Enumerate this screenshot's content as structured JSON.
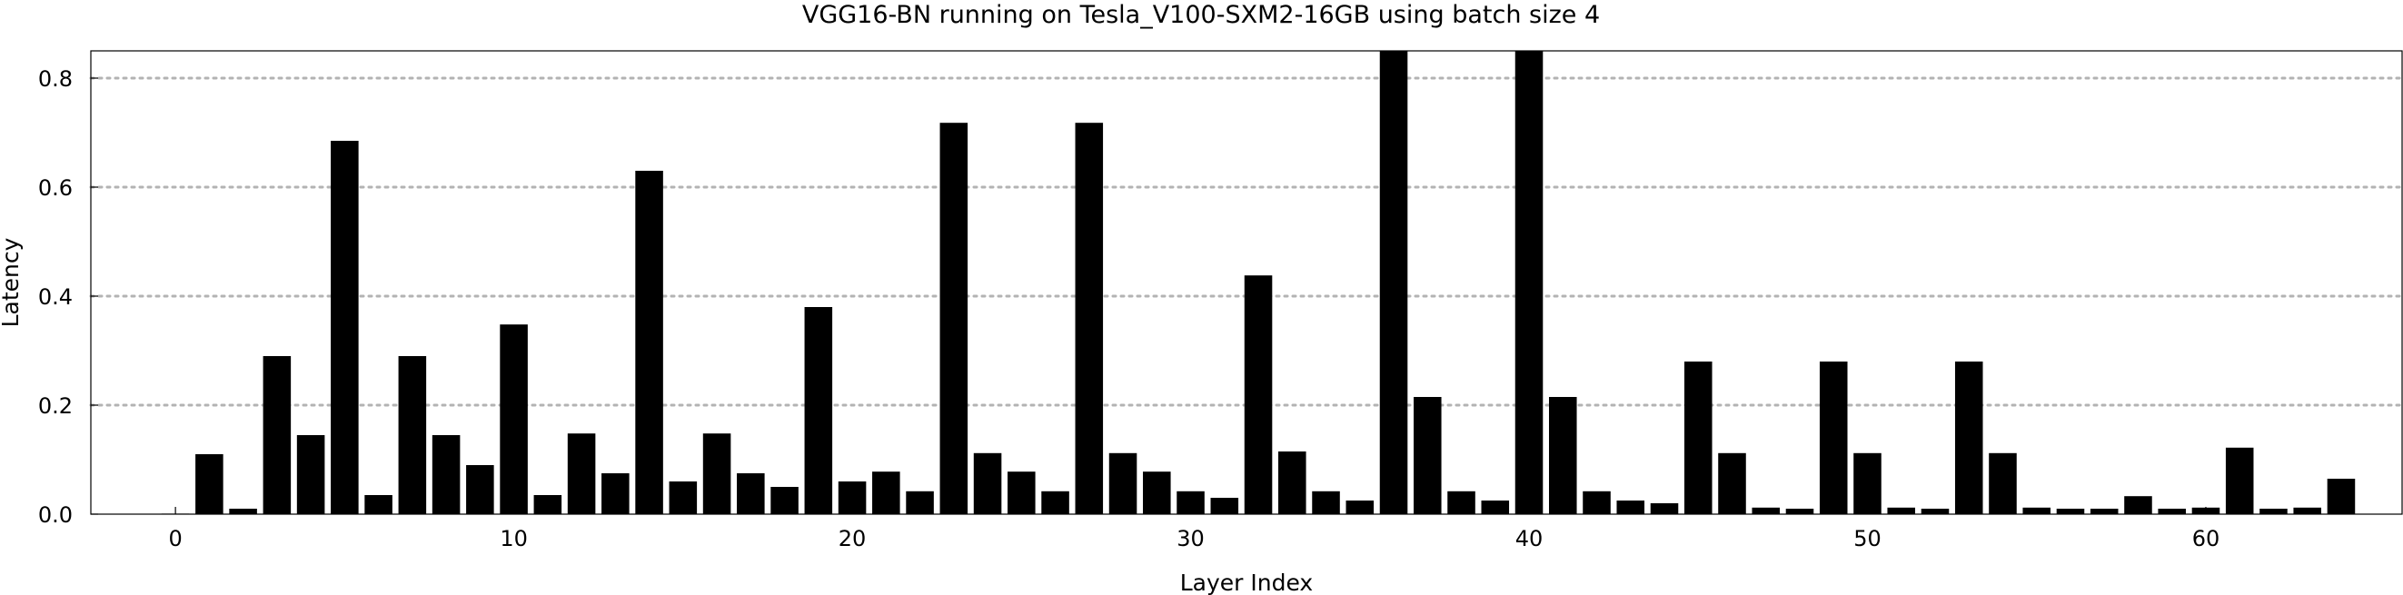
{
  "chart_data": {
    "type": "bar",
    "title": "VGG16-BN running on Tesla_V100-SXM2-16GB using batch size 4",
    "xlabel": "Layer Index",
    "ylabel": "Latency",
    "xlim": [
      -2.5,
      65.8
    ],
    "ylim": [
      0,
      0.85
    ],
    "grid": "horizontal-dotted",
    "legend": "none",
    "bar_color": "#000000",
    "grid_color": "#b3b3b3",
    "x_ticks": [
      0,
      10,
      20,
      30,
      40,
      50,
      60
    ],
    "y_ticks": [
      0.0,
      0.2,
      0.4,
      0.6,
      0.8
    ],
    "x_tick_labels": [
      "0",
      "10",
      "20",
      "30",
      "40",
      "50",
      "60"
    ],
    "y_tick_labels": [
      "0.0",
      "0.2",
      "0.4",
      "0.6",
      "0.8"
    ],
    "x": [
      0,
      1,
      2,
      3,
      4,
      5,
      6,
      7,
      8,
      9,
      10,
      11,
      12,
      13,
      14,
      15,
      16,
      17,
      18,
      19,
      20,
      21,
      22,
      23,
      24,
      25,
      26,
      27,
      28,
      29,
      30,
      31,
      32,
      33,
      34,
      35,
      36,
      37,
      38,
      39,
      40,
      41,
      42,
      43,
      44,
      45,
      46,
      47,
      48,
      49,
      50,
      51,
      52,
      53,
      54,
      55,
      56,
      57,
      58,
      59,
      60,
      61,
      62,
      63,
      64
    ],
    "values": [
      0.001,
      0.11,
      0.01,
      0.29,
      0.145,
      0.685,
      0.035,
      0.29,
      0.145,
      0.09,
      0.348,
      0.035,
      0.148,
      0.075,
      0.63,
      0.06,
      0.148,
      0.075,
      0.05,
      0.38,
      0.06,
      0.078,
      0.042,
      0.718,
      0.112,
      0.078,
      0.042,
      0.718,
      0.112,
      0.078,
      0.042,
      0.03,
      0.438,
      0.115,
      0.042,
      0.025,
      0.85,
      0.215,
      0.042,
      0.025,
      0.85,
      0.215,
      0.042,
      0.025,
      0.02,
      0.28,
      0.112,
      0.012,
      0.01,
      0.28,
      0.112,
      0.012,
      0.01,
      0.28,
      0.112,
      0.012,
      0.01,
      0.01,
      0.033,
      0.01,
      0.012,
      0.122,
      0.01,
      0.012,
      0.065
    ]
  }
}
